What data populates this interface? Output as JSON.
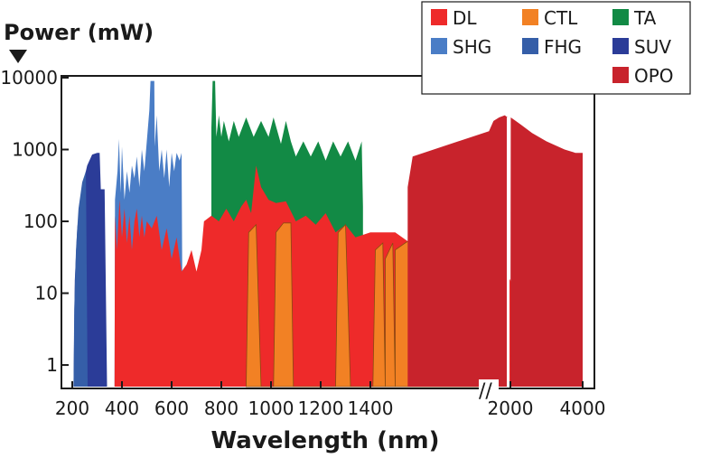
{
  "chart_data": {
    "type": "area",
    "title": "",
    "ylabel": "Power (mW)",
    "xlabel": "Wavelength (nm)",
    "y_scale": "log",
    "ylim": [
      0.5,
      10000
    ],
    "y_ticks": [
      1,
      10,
      100,
      1000,
      10000
    ],
    "x_axis": "linear 200-1600 nm, axis break, then compressed 1600-4000 nm",
    "x_ticks": [
      200,
      400,
      600,
      800,
      1000,
      1200,
      1400,
      2000,
      4000
    ],
    "grid": false,
    "legend_position": "top-right",
    "colors": {
      "DL": "#ee2a2a",
      "CTL": "#f28124",
      "TA": "#128a45",
      "SHG": "#4a7dc6",
      "FHG": "#355ea8",
      "SUV": "#2b3c98",
      "OPO": "#c8232c"
    },
    "legend": [
      "DL",
      "CTL",
      "TA",
      "SHG",
      "FHG",
      "SUV",
      "OPO"
    ],
    "series": [
      {
        "name": "SUV",
        "points": [
          [
            205,
            0.5
          ],
          [
            210,
            15
          ],
          [
            220,
            80
          ],
          [
            240,
            300
          ],
          [
            260,
            600
          ],
          [
            280,
            850
          ],
          [
            300,
            900
          ],
          [
            310,
            900
          ],
          [
            315,
            280
          ],
          [
            330,
            280
          ],
          [
            340,
            0.5
          ]
        ]
      },
      {
        "name": "FHG",
        "points": [
          [
            205,
            0.5
          ],
          [
            208,
            6
          ],
          [
            215,
            40
          ],
          [
            225,
            150
          ],
          [
            240,
            350
          ],
          [
            255,
            500
          ],
          [
            262,
            0.5
          ]
        ]
      },
      {
        "name": "SHG",
        "points": [
          [
            370,
            0.5
          ],
          [
            372,
            200
          ],
          [
            382,
            500
          ],
          [
            388,
            1400
          ],
          [
            395,
            250
          ],
          [
            400,
            1100
          ],
          [
            410,
            200
          ],
          [
            420,
            500
          ],
          [
            430,
            250
          ],
          [
            440,
            600
          ],
          [
            450,
            400
          ],
          [
            460,
            800
          ],
          [
            470,
            300
          ],
          [
            480,
            1000
          ],
          [
            490,
            500
          ],
          [
            500,
            1300
          ],
          [
            510,
            3500
          ],
          [
            515,
            9000
          ],
          [
            530,
            9000
          ],
          [
            532,
            1100
          ],
          [
            540,
            3000
          ],
          [
            550,
            500
          ],
          [
            560,
            1000
          ],
          [
            570,
            400
          ],
          [
            580,
            1000
          ],
          [
            590,
            300
          ],
          [
            600,
            900
          ],
          [
            610,
            500
          ],
          [
            620,
            900
          ],
          [
            632,
            700
          ],
          [
            640,
            900
          ],
          [
            645,
            0.5
          ]
        ]
      },
      {
        "name": "TA",
        "points": [
          [
            760,
            2000
          ],
          [
            765,
            9000
          ],
          [
            775,
            9000
          ],
          [
            780,
            1500
          ],
          [
            790,
            3000
          ],
          [
            800,
            1500
          ],
          [
            810,
            2500
          ],
          [
            830,
            1300
          ],
          [
            850,
            2500
          ],
          [
            870,
            1500
          ],
          [
            900,
            2800
          ],
          [
            930,
            1500
          ],
          [
            960,
            2500
          ],
          [
            990,
            1500
          ],
          [
            1010,
            2800
          ],
          [
            1040,
            1200
          ],
          [
            1060,
            2500
          ],
          [
            1080,
            1300
          ],
          [
            1100,
            800
          ],
          [
            1130,
            1300
          ],
          [
            1160,
            800
          ],
          [
            1190,
            1300
          ],
          [
            1220,
            700
          ],
          [
            1250,
            1300
          ],
          [
            1280,
            800
          ],
          [
            1310,
            1300
          ],
          [
            1340,
            700
          ],
          [
            1365,
            1300
          ],
          [
            1370,
            160
          ]
        ]
      },
      {
        "name": "DL",
        "points": [
          [
            370,
            0.5
          ],
          [
            372,
            120
          ],
          [
            380,
            40
          ],
          [
            390,
            200
          ],
          [
            400,
            60
          ],
          [
            410,
            150
          ],
          [
            420,
            50
          ],
          [
            430,
            120
          ],
          [
            440,
            40
          ],
          [
            450,
            100
          ],
          [
            460,
            150
          ],
          [
            470,
            60
          ],
          [
            480,
            120
          ],
          [
            490,
            60
          ],
          [
            500,
            100
          ],
          [
            520,
            80
          ],
          [
            540,
            120
          ],
          [
            560,
            40
          ],
          [
            580,
            80
          ],
          [
            600,
            30
          ],
          [
            620,
            60
          ],
          [
            640,
            20
          ],
          [
            660,
            25
          ],
          [
            680,
            40
          ],
          [
            700,
            20
          ],
          [
            720,
            40
          ],
          [
            730,
            100
          ],
          [
            760,
            120
          ],
          [
            790,
            100
          ],
          [
            820,
            150
          ],
          [
            850,
            100
          ],
          [
            880,
            160
          ],
          [
            900,
            200
          ],
          [
            920,
            130
          ],
          [
            940,
            600
          ],
          [
            960,
            300
          ],
          [
            990,
            200
          ],
          [
            1020,
            180
          ],
          [
            1060,
            190
          ],
          [
            1100,
            100
          ],
          [
            1140,
            120
          ],
          [
            1180,
            90
          ],
          [
            1220,
            130
          ],
          [
            1260,
            70
          ],
          [
            1300,
            90
          ],
          [
            1340,
            60
          ],
          [
            1400,
            70
          ],
          [
            1500,
            70
          ],
          [
            1600,
            40
          ],
          [
            1800,
            30
          ],
          [
            2000,
            15
          ],
          [
            2400,
            5
          ],
          [
            2800,
            2
          ],
          [
            3200,
            1
          ],
          [
            3500,
            1
          ],
          [
            3600,
            0.5
          ]
        ]
      },
      {
        "name": "CTL",
        "points": [
          [
            900,
            0.5
          ],
          [
            910,
            70
          ],
          [
            940,
            90
          ],
          [
            960,
            0.5
          ],
          [
            1010,
            0.5
          ],
          [
            1020,
            70
          ],
          [
            1050,
            95
          ],
          [
            1080,
            95
          ],
          [
            1090,
            0.5
          ],
          [
            1260,
            0.5
          ],
          [
            1270,
            70
          ],
          [
            1300,
            90
          ],
          [
            1320,
            0.5
          ],
          [
            1410,
            0.5
          ],
          [
            1420,
            40
          ],
          [
            1450,
            50
          ],
          [
            1460,
            0.5
          ],
          [
            1460,
            30
          ],
          [
            1490,
            50
          ],
          [
            1500,
            0.5
          ],
          [
            1500,
            40
          ],
          [
            1540,
            50
          ],
          [
            1560,
            55
          ],
          [
            1600,
            50
          ],
          [
            1640,
            0.5
          ]
        ]
      },
      {
        "name": "OPO",
        "points": [
          [
            1550,
            300
          ],
          [
            1570,
            800
          ],
          [
            1620,
            1800
          ],
          [
            1700,
            2500
          ],
          [
            1800,
            2800
          ],
          [
            1900,
            3000
          ],
          [
            1950,
            2800
          ],
          [
            1960,
            0.5
          ],
          [
            2000,
            0.5
          ],
          [
            2010,
            2800
          ],
          [
            2100,
            2600
          ],
          [
            2300,
            2200
          ],
          [
            2600,
            1700
          ],
          [
            3000,
            1300
          ],
          [
            3500,
            1000
          ],
          [
            3800,
            900
          ],
          [
            4000,
            900
          ],
          [
            4000,
            0.5
          ]
        ]
      }
    ]
  },
  "axis_break_label": "//"
}
